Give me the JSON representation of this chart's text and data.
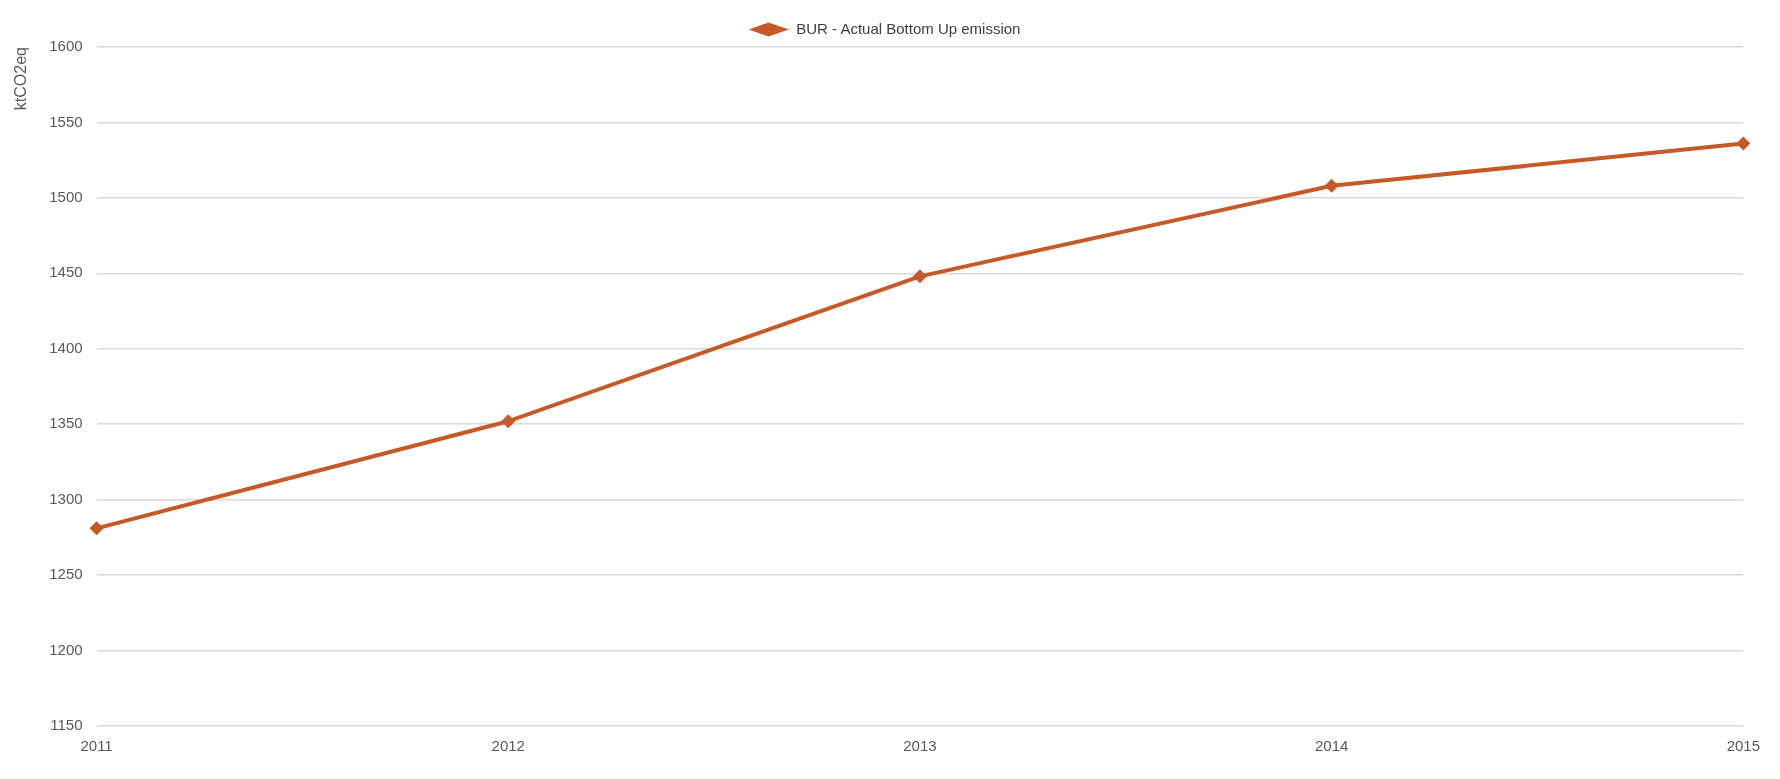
{
  "chart_data": {
    "type": "line",
    "ylabel": "ktCO2eq",
    "categories": [
      "2011",
      "2012",
      "2013",
      "2014",
      "2015"
    ],
    "series": [
      {
        "name": "BUR - Actual Bottom Up emission",
        "color": "#c55a28",
        "values": [
          1281,
          1352,
          1448,
          1508,
          1536
        ]
      }
    ],
    "ylim": [
      1150,
      1600
    ],
    "yticks": [
      1150,
      1200,
      1250,
      1300,
      1350,
      1400,
      1450,
      1500,
      1550,
      1600
    ],
    "grid": "y",
    "legend": "top",
    "marker": "diamond",
    "line_style": "solid"
  }
}
